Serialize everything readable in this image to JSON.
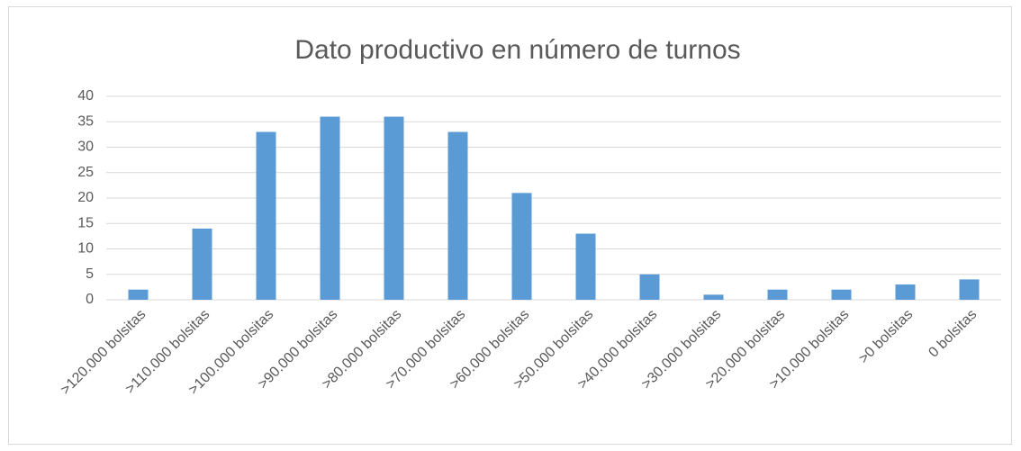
{
  "chart_data": {
    "type": "bar",
    "title": "Dato productivo en número de turnos",
    "categories": [
      ">120.000 bolsitas",
      ">110.000 bolsitas",
      ">100.000 bolsitas",
      ">90.000 bolsitas",
      ">80.000 bolsitas",
      ">70.000 bolsitas",
      ">60.000 bolsitas",
      ">50.000 bolsitas",
      ">40.000 bolsitas",
      ">30.000 bolsitas",
      ">20.000 bolsitas",
      ">10.000 bolsitas",
      ">0 bolsitas",
      "0 bolsitas"
    ],
    "values": [
      2,
      14,
      33,
      36,
      36,
      33,
      21,
      13,
      5,
      1,
      2,
      2,
      3,
      4
    ],
    "color": "#5b9bd5",
    "ylim": [
      0,
      40
    ],
    "yticks": [
      0,
      5,
      10,
      15,
      20,
      25,
      30,
      35,
      40
    ],
    "grid": true
  }
}
